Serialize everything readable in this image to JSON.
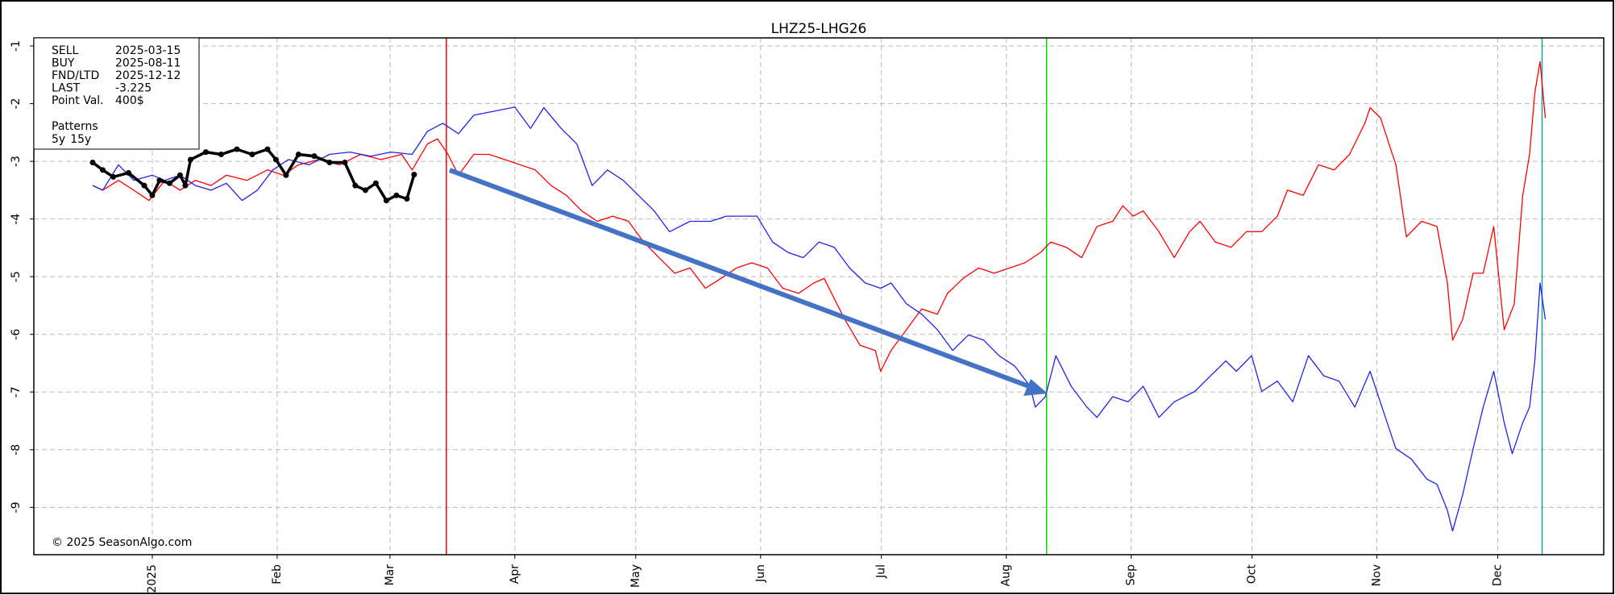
{
  "chart_data": {
    "type": "line",
    "title": "LHZ25-LHG26",
    "footer": "© 2025 SeasonAlgo.com",
    "info": [
      {
        "label": "SELL",
        "value": "2025-03-15",
        "color": "#ff0000"
      },
      {
        "label": "BUY",
        "value": "2025-08-11",
        "color": "#00dd00"
      },
      {
        "label": "FND/LTD",
        "value": "2025-12-12",
        "color": "#1aa3a3"
      },
      {
        "label": "LAST",
        "value": -3.225,
        "color": "#000000"
      },
      {
        "label": "Point Val.",
        "value": "400$",
        "color": "#000000"
      }
    ],
    "legend_title": "Patterns",
    "xlim": [
      -29.4,
      360.3
    ],
    "ylim": [
      -9.82,
      -0.86
    ],
    "xticks": [
      {
        "value": 0,
        "label": "2025"
      },
      {
        "value": 31,
        "label": "Feb"
      },
      {
        "value": 59,
        "label": "Mar"
      },
      {
        "value": 90,
        "label": "Apr"
      },
      {
        "value": 120,
        "label": "May"
      },
      {
        "value": 151,
        "label": "Jun"
      },
      {
        "value": 181,
        "label": "Jul"
      },
      {
        "value": 212,
        "label": "Aug"
      },
      {
        "value": 243,
        "label": "Sep"
      },
      {
        "value": 273,
        "label": "Oct"
      },
      {
        "value": 304,
        "label": "Nov"
      },
      {
        "value": 334,
        "label": "Dec"
      }
    ],
    "yticks": [
      -1,
      -2,
      -3,
      -4,
      -5,
      -6,
      -7,
      -8,
      -9
    ],
    "grid": true,
    "series": [
      {
        "name": "5y",
        "color": "#ff0000",
        "x": [
          -14.8,
          -12.3,
          -8.4,
          -4.6,
          -0.8,
          3.1,
          6.9,
          10.7,
          14.6,
          18.4,
          23.5,
          28.6,
          32.5,
          36.3,
          41.4,
          46.5,
          51.7,
          56.8,
          61.9,
          64.5,
          68.3,
          70.8,
          73.4,
          76.0,
          79.8,
          83.6,
          87.5,
          91.3,
          95.1,
          99.0,
          102.8,
          106.6,
          110.5,
          114.3,
          118.2,
          122.0,
          125.8,
          129.7,
          133.5,
          137.3,
          141.2,
          145.0,
          148.8,
          152.7,
          156.5,
          160.4,
          164.2,
          166.8,
          169.3,
          171.9,
          175.7,
          179.5,
          180.8,
          183.4,
          187.2,
          191.0,
          194.9,
          197.4,
          201.3,
          205.1,
          209.0,
          212.8,
          216.6,
          220.5,
          223.0,
          226.9,
          230.7,
          234.5,
          238.4,
          240.9,
          243.5,
          246.0,
          249.9,
          253.7,
          257.5,
          260.1,
          263.9,
          267.8,
          271.6,
          275.4,
          279.3,
          281.8,
          285.7,
          289.5,
          293.4,
          297.2,
          301.0,
          302.3,
          304.9,
          308.7,
          311.3,
          315.1,
          318.9,
          321.5,
          322.8,
          325.3,
          327.9,
          330.4,
          333.0,
          335.6,
          338.1,
          340.2,
          341.9,
          343.2,
          344.5,
          345.8
        ],
        "values": [
          -3.42,
          -3.5,
          -3.33,
          -3.5,
          -3.68,
          -3.33,
          -3.5,
          -3.33,
          -3.42,
          -3.24,
          -3.33,
          -3.15,
          -3.24,
          -3.06,
          -2.97,
          -3.06,
          -2.88,
          -2.97,
          -2.88,
          -3.15,
          -2.7,
          -2.61,
          -2.88,
          -3.24,
          -2.88,
          -2.88,
          -2.97,
          -3.06,
          -3.15,
          -3.42,
          -3.59,
          -3.86,
          -4.04,
          -3.95,
          -4.04,
          -4.4,
          -4.67,
          -4.94,
          -4.85,
          -5.2,
          -5.03,
          -4.85,
          -4.76,
          -4.85,
          -5.2,
          -5.29,
          -5.11,
          -5.03,
          -5.38,
          -5.74,
          -6.19,
          -6.28,
          -6.64,
          -6.28,
          -5.92,
          -5.56,
          -5.65,
          -5.29,
          -5.03,
          -4.85,
          -4.94,
          -4.85,
          -4.76,
          -4.58,
          -4.4,
          -4.49,
          -4.67,
          -4.13,
          -4.04,
          -3.77,
          -3.95,
          -3.86,
          -4.22,
          -4.67,
          -4.22,
          -4.04,
          -4.4,
          -4.49,
          -4.22,
          -4.22,
          -3.95,
          -3.5,
          -3.59,
          -3.06,
          -3.15,
          -2.88,
          -2.34,
          -2.07,
          -2.25,
          -3.06,
          -4.31,
          -4.04,
          -4.13,
          -5.11,
          -6.1,
          -5.74,
          -4.94,
          -4.94,
          -4.13,
          -5.92,
          -5.47,
          -3.59,
          -2.88,
          -1.81,
          -1.27,
          -2.25
        ]
      },
      {
        "name": "15y",
        "color": "#2222ee",
        "x": [
          -14.8,
          -12.3,
          -8.4,
          -4.6,
          0,
          3.1,
          6.9,
          10.7,
          14.6,
          18.4,
          22.3,
          26.1,
          29.9,
          33.8,
          38.9,
          44.0,
          49.1,
          54.2,
          59.3,
          64.5,
          68.3,
          72.1,
          76.0,
          79.8,
          84.9,
          90.0,
          93.9,
          97.2,
          101.5,
          105.4,
          109.2,
          113.0,
          116.9,
          120.7,
          124.6,
          128.4,
          133.5,
          138.6,
          142.5,
          146.3,
          150.1,
          154.0,
          157.8,
          161.6,
          165.5,
          169.3,
          173.1,
          177.0,
          180.8,
          183.4,
          187.2,
          191.0,
          194.9,
          198.7,
          202.6,
          206.4,
          210.2,
          214.1,
          217.9,
          219.2,
          221.7,
          224.3,
          228.1,
          232.0,
          234.5,
          238.4,
          242.2,
          246.0,
          249.9,
          253.7,
          258.8,
          262.7,
          266.5,
          269.1,
          272.9,
          275.4,
          279.3,
          283.1,
          287.0,
          290.8,
          294.6,
          298.5,
          302.3,
          306.1,
          308.7,
          312.5,
          316.4,
          318.9,
          321.5,
          322.8,
          325.3,
          327.9,
          330.4,
          333.0,
          335.6,
          337.6,
          340.2,
          341.9,
          343.2,
          344.5,
          345.8
        ],
        "values": [
          -3.42,
          -3.5,
          -3.06,
          -3.33,
          -3.24,
          -3.33,
          -3.24,
          -3.42,
          -3.5,
          -3.38,
          -3.68,
          -3.5,
          -3.15,
          -2.97,
          -3.06,
          -2.88,
          -2.84,
          -2.91,
          -2.84,
          -2.88,
          -2.48,
          -2.34,
          -2.52,
          -2.2,
          -2.13,
          -2.06,
          -2.43,
          -2.07,
          -2.43,
          -2.7,
          -3.42,
          -3.15,
          -3.33,
          -3.59,
          -3.86,
          -4.22,
          -4.04,
          -4.04,
          -3.95,
          -3.95,
          -3.95,
          -4.4,
          -4.58,
          -4.67,
          -4.4,
          -4.49,
          -4.85,
          -5.11,
          -5.2,
          -5.11,
          -5.47,
          -5.65,
          -5.92,
          -6.28,
          -6.01,
          -6.1,
          -6.37,
          -6.55,
          -6.9,
          -7.26,
          -7.08,
          -6.37,
          -6.9,
          -7.26,
          -7.44,
          -7.08,
          -7.17,
          -6.9,
          -7.44,
          -7.17,
          -6.99,
          -6.72,
          -6.46,
          -6.64,
          -6.37,
          -6.99,
          -6.81,
          -7.17,
          -6.37,
          -6.72,
          -6.81,
          -7.26,
          -6.64,
          -7.44,
          -7.98,
          -8.16,
          -8.51,
          -8.6,
          -9.05,
          -9.41,
          -8.78,
          -7.98,
          -7.26,
          -6.64,
          -7.53,
          -8.07,
          -7.53,
          -7.26,
          -6.46,
          -5.11,
          -5.74
        ]
      },
      {
        "color": "#000000",
        "markers": true,
        "x": [
          -14.8,
          -12.3,
          -9.7,
          -5.9,
          -2.0,
          0,
          1.8,
          4.3,
          6.9,
          8.2,
          9.5,
          13.3,
          17.1,
          21.0,
          24.8,
          28.6,
          30.7,
          33.2,
          36.3,
          40.2,
          44.0,
          47.8,
          50.4,
          52.9,
          55.5,
          58.1,
          60.6,
          63.2,
          65.0
        ],
        "values": [
          -3.02,
          -3.15,
          -3.27,
          -3.2,
          -3.42,
          -3.59,
          -3.33,
          -3.38,
          -3.24,
          -3.42,
          -2.97,
          -2.84,
          -2.88,
          -2.79,
          -2.88,
          -2.79,
          -2.97,
          -3.24,
          -2.88,
          -2.91,
          -3.02,
          -3.02,
          -3.42,
          -3.5,
          -3.38,
          -3.68,
          -3.59,
          -3.65,
          -3.23
        ]
      }
    ]
  }
}
